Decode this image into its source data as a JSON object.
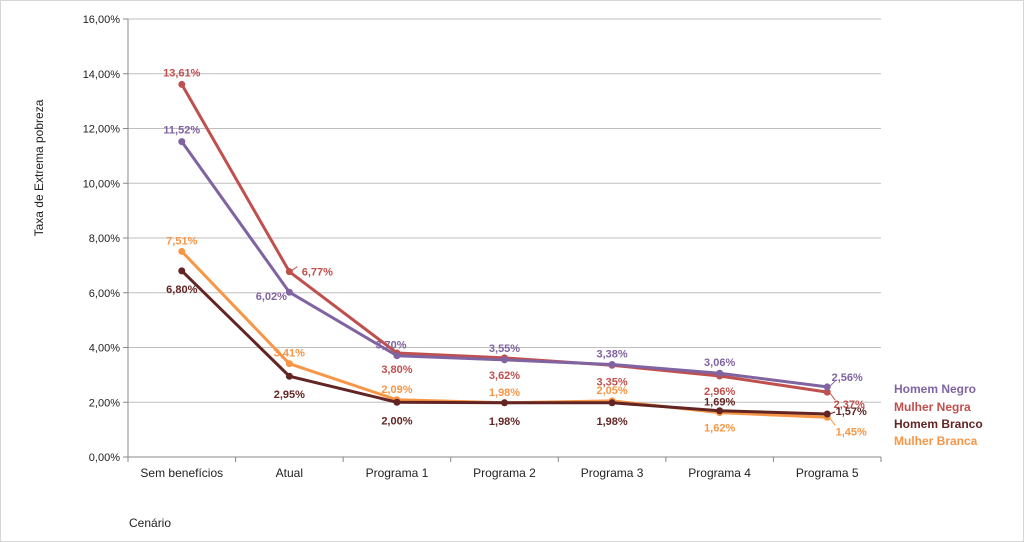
{
  "chart_data": {
    "type": "line",
    "title": "",
    "xlabel": "Cenário",
    "ylabel": "Taxa de Extrema pobreza",
    "ylim": [
      0,
      16
    ],
    "yticks": [
      "0,00%",
      "2,00%",
      "4,00%",
      "6,00%",
      "8,00%",
      "10,00%",
      "12,00%",
      "14,00%",
      "16,00%"
    ],
    "grid": true,
    "legend_position": "right",
    "categories": [
      "Sem benefícios",
      "Atual",
      "Programa 1",
      "Programa 2",
      "Programa 3",
      "Programa 4",
      "Programa 5"
    ],
    "series": [
      {
        "name": "Homem Negro",
        "color": "#8064a2",
        "values": [
          11.52,
          6.02,
          3.7,
          3.55,
          3.38,
          3.06,
          2.56
        ],
        "labels": [
          "11,52%",
          "6,02%",
          "3,70%",
          "3,55%",
          "3,38%",
          "3,06%",
          "2,56%"
        ]
      },
      {
        "name": "Mulher Negra",
        "color": "#c0504d",
        "values": [
          13.61,
          6.77,
          3.8,
          3.62,
          3.35,
          2.96,
          2.37
        ],
        "labels": [
          "13,61%",
          "6,77%",
          "3,80%",
          "3,62%",
          "3,35%",
          "2,96%",
          "2,37%"
        ]
      },
      {
        "name": "Homem Branco",
        "color": "#632523",
        "values": [
          6.8,
          2.95,
          2.0,
          1.98,
          1.98,
          1.69,
          1.57
        ],
        "labels": [
          "6,80%",
          "2,95%",
          "2,00%",
          "1,98%",
          "1,98%",
          "1,69%",
          "1,57%"
        ]
      },
      {
        "name": "Mulher Branca",
        "color": "#f79646",
        "values": [
          7.51,
          3.41,
          2.09,
          1.98,
          2.05,
          1.62,
          1.45
        ],
        "labels": [
          "7,51%",
          "3,41%",
          "2,09%",
          "1,98%",
          "2,05%",
          "1,62%",
          "1,45%"
        ]
      }
    ],
    "axis_color": "#888888",
    "grid_color": "#bfbfbf"
  }
}
